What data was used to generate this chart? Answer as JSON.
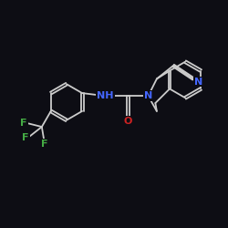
{
  "background_color": "#0d0d14",
  "bond_color": "#cccccc",
  "bond_lw": 1.3,
  "nh_color": "#4466ff",
  "n_color": "#4466ff",
  "o_color": "#cc2222",
  "f_color": "#44aa44",
  "font_size": 8,
  "figsize": [
    2.5,
    2.5
  ],
  "dpi": 100,
  "xlim": [
    -2.6,
    2.2
  ],
  "ylim": [
    -1.6,
    1.6
  ]
}
